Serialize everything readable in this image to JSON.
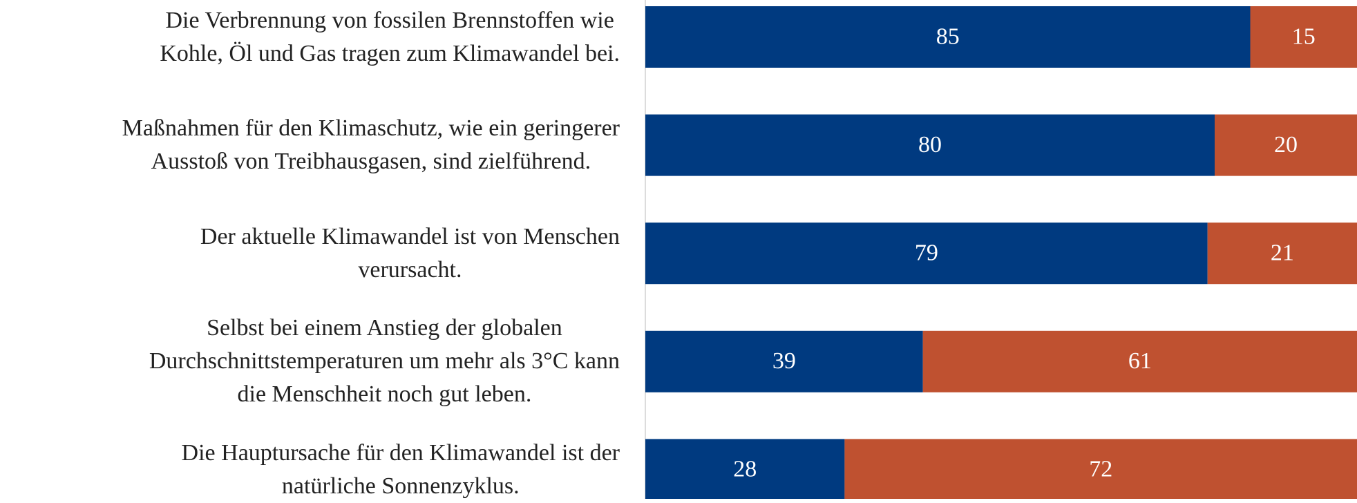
{
  "chart_data": {
    "type": "stacked-bar-horizontal",
    "categories": [
      "Die Verbrennung von fossilen Brennstoffen wie\nKohle, Öl und Gas tragen zum Klimawandel bei.",
      "Maßnahmen für den Klimaschutz, wie ein geringerer\nAusstoß von Treibhausgasen, sind zielführend.",
      "Der aktuelle Klimawandel ist von Menschen\nverursacht.",
      "Selbst bei einem Anstieg der globalen\nDurchschnittstemperaturen um mehr als 3°C kann\ndie Menschheit noch gut leben.",
      "Die Hauptursache für den Klimawandel ist der\nnatürliche Sonnenzyklus."
    ],
    "series": [
      {
        "color": "#003a80",
        "values": [
          85,
          80,
          79,
          39,
          28
        ]
      },
      {
        "color": "#bf5130",
        "values": [
          15,
          20,
          21,
          61,
          72
        ]
      }
    ],
    "xlim": [
      0,
      100
    ]
  }
}
